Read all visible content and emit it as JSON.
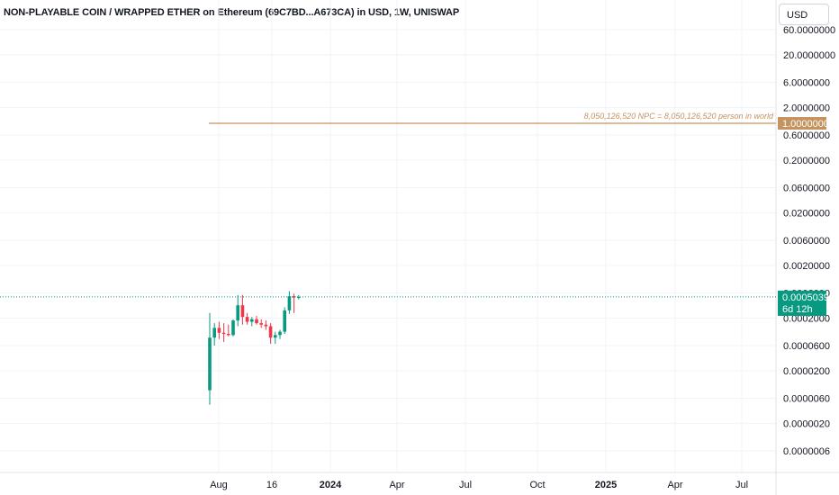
{
  "header": {
    "title": "NON-PLAYABLE COIN / WRAPPED ETHER on Ethereum (69C7BD...A673CA) in USD, 1W, UNISWAP",
    "currency": "USD"
  },
  "chart_data": {
    "type": "candlestick",
    "title": "NON-PLAYABLE COIN / WRAPPED ETHER on Ethereum (69C7BD...A673CA) in USD, 1W, UNISWAP",
    "y_scale": "log",
    "y_ticks": [
      "60.0000000",
      "20.0000000",
      "6.0000000",
      "2.0000000",
      "0.6000000",
      "0.2000000",
      "0.0600000",
      "0.0200000",
      "0.0060000",
      "0.0020000",
      "0.0006000",
      "0.0002000",
      "0.0000600",
      "0.0000200",
      "0.0000060",
      "0.0000020",
      "0.0000006"
    ],
    "x_ticks": [
      {
        "label": "Aug",
        "bold": false
      },
      {
        "label": "16",
        "bold": false
      },
      {
        "label": "2024",
        "bold": true
      },
      {
        "label": "Apr",
        "bold": false
      },
      {
        "label": "Jul",
        "bold": false
      },
      {
        "label": "Oct",
        "bold": false
      },
      {
        "label": "2025",
        "bold": true
      },
      {
        "label": "Apr",
        "bold": false
      },
      {
        "label": "Jul",
        "bold": false
      }
    ],
    "candles": [
      {
        "o": 8.5e-06,
        "h": 0.00025,
        "l": 4.5e-06,
        "c": 8.5e-05
      },
      {
        "o": 8.5e-05,
        "h": 0.00016,
        "l": 6e-05,
        "c": 0.00013
      },
      {
        "o": 0.00013,
        "h": 0.00017,
        "l": 8e-05,
        "c": 0.000105
      },
      {
        "o": 0.000105,
        "h": 0.00016,
        "l": 7e-05,
        "c": 0.0001
      },
      {
        "o": 0.0001,
        "h": 0.00015,
        "l": 9e-05,
        "c": 9.5e-05
      },
      {
        "o": 9.5e-05,
        "h": 0.00019,
        "l": 9e-05,
        "c": 0.00018
      },
      {
        "o": 0.00018,
        "h": 0.00055,
        "l": 0.00014,
        "c": 0.00035
      },
      {
        "o": 0.00035,
        "h": 0.00055,
        "l": 0.00015,
        "c": 0.00021
      },
      {
        "o": 0.00021,
        "h": 0.00025,
        "l": 0.00015,
        "c": 0.00017
      },
      {
        "o": 0.00017,
        "h": 0.00021,
        "l": 0.00014,
        "c": 0.00019
      },
      {
        "o": 0.00019,
        "h": 0.00022,
        "l": 0.00015,
        "c": 0.00016
      },
      {
        "o": 0.00016,
        "h": 0.00019,
        "l": 0.00013,
        "c": 0.00015
      },
      {
        "o": 0.00015,
        "h": 0.00018,
        "l": 0.00012,
        "c": 0.00014
      },
      {
        "o": 0.00014,
        "h": 0.00016,
        "l": 6.5e-05,
        "c": 8.5e-05
      },
      {
        "o": 8.5e-05,
        "h": 0.00011,
        "l": 6.5e-05,
        "c": 9.5e-05
      },
      {
        "o": 9.5e-05,
        "h": 0.00012,
        "l": 8e-05,
        "c": 0.00011
      },
      {
        "o": 0.00011,
        "h": 0.00032,
        "l": 0.0001,
        "c": 0.00028
      },
      {
        "o": 0.00028,
        "h": 0.00065,
        "l": 0.00024,
        "c": 0.00052
      },
      {
        "o": 0.00052,
        "h": 0.00058,
        "l": 0.00025,
        "c": 0.00049
      },
      {
        "o": 0.00049,
        "h": 0.00055,
        "l": 0.00045,
        "c": 0.0005039
      }
    ],
    "horizontal_line": {
      "value": 1.0,
      "label": "1.0000000",
      "annotation": "8,050,126,520 NPC = 8,050,126,520 person in world",
      "color": "#c49360"
    },
    "last_price": {
      "value": 0.0005039,
      "label": "0.0005039",
      "countdown": "6d 12h",
      "color": "#089981"
    },
    "colors": {
      "up": "#089981",
      "down": "#f23645",
      "grid": "#f0f3fa"
    }
  }
}
